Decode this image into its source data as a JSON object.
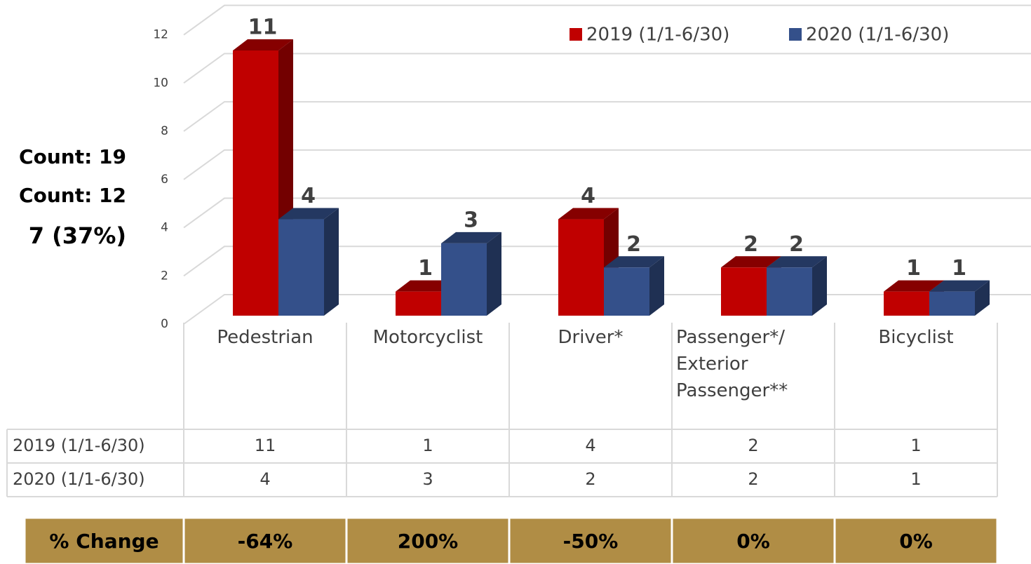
{
  "chart_data": {
    "type": "bar",
    "categories": [
      "Pedestrian",
      "Motorcyclist",
      "Driver*",
      "Passenger*/ Exterior Passenger**",
      "Bicyclist"
    ],
    "series": [
      {
        "name": "2019 (1/1-6/30)",
        "color": "#c00000",
        "values": [
          11,
          1,
          4,
          2,
          1
        ]
      },
      {
        "name": "2020 (1/1-6/30)",
        "color": "#34508a",
        "values": [
          4,
          3,
          2,
          2,
          1
        ]
      }
    ],
    "ylim": [
      0,
      12
    ],
    "yticks": [
      0,
      2,
      4,
      6,
      8,
      10,
      12
    ],
    "grid": true,
    "legend": "top-right",
    "data_table": true
  },
  "change_row": {
    "label": "% Change",
    "values": [
      -64,
      200,
      -50,
      0,
      0
    ],
    "value_labels": [
      "-64%",
      "200%",
      "-50%",
      "0%",
      "0%"
    ]
  },
  "side_notes": [
    "Count: 19",
    "Count: 12",
    "7 (37%)"
  ]
}
